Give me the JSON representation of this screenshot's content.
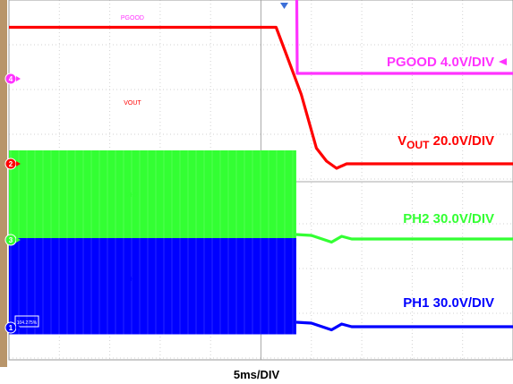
{
  "chart_data": {
    "type": "line",
    "title": "",
    "timebase_label": "5ms/DIV",
    "x_unit": "ms",
    "xlim": [
      0,
      50
    ],
    "grid": true,
    "channels": [
      {
        "id": "pgood",
        "trace_label": "PGOOD",
        "scale_name": "PGOOD",
        "scale_sub": "",
        "scale_value": " 4.0V/DIV",
        "color": "#ff33ff",
        "marker": "4",
        "level_divs": [
          3.5,
          3.5,
          0.12,
          0.12
        ],
        "x": [
          0,
          28.5,
          28.6,
          50
        ],
        "arrow": true
      },
      {
        "id": "vout",
        "trace_label": "VOUT",
        "scale_name": "V",
        "scale_sub": "OUT",
        "scale_value": " 20.0V/DIV",
        "color": "#ff0000",
        "marker": "2",
        "level_divs": [
          3.05,
          3.05,
          2.45,
          1.55,
          0.35,
          0.06,
          -0.1,
          0.0,
          0.0
        ],
        "x": [
          0,
          26.5,
          27.5,
          29.0,
          30.5,
          31.5,
          32.5,
          33.5,
          50
        ],
        "arrow": false
      },
      {
        "id": "ph2",
        "trace_label": "PH2",
        "scale_name": "PH2",
        "scale_sub": "",
        "scale_value": " 30.0V/DIV",
        "color": "#33ff33",
        "marker": "3",
        "burst_end": 28.5,
        "burst_top": 2.0,
        "burst_bottom": -0.15,
        "level_divs": [
          0.12,
          0.1,
          -0.05,
          0.08,
          0.02,
          0.02
        ],
        "x": [
          28.5,
          30.0,
          32.0,
          33.0,
          34.0,
          50
        ],
        "arrow": false
      },
      {
        "id": "ph1",
        "trace_label": "PH1",
        "scale_name": "PH1",
        "scale_sub": "",
        "scale_value": " 30.0V/DIV",
        "color": "#0000ff",
        "marker": "1",
        "burst_end": 28.5,
        "burst_top": 2.0,
        "burst_bottom": -0.15,
        "level_divs": [
          0.12,
          0.1,
          -0.05,
          0.08,
          0.02,
          0.02
        ],
        "x": [
          28.5,
          30.0,
          32.0,
          33.0,
          34.0,
          50
        ],
        "arrow": false
      }
    ],
    "cursor_readout": "104.275%",
    "trigger_position_ms": 27.5
  }
}
